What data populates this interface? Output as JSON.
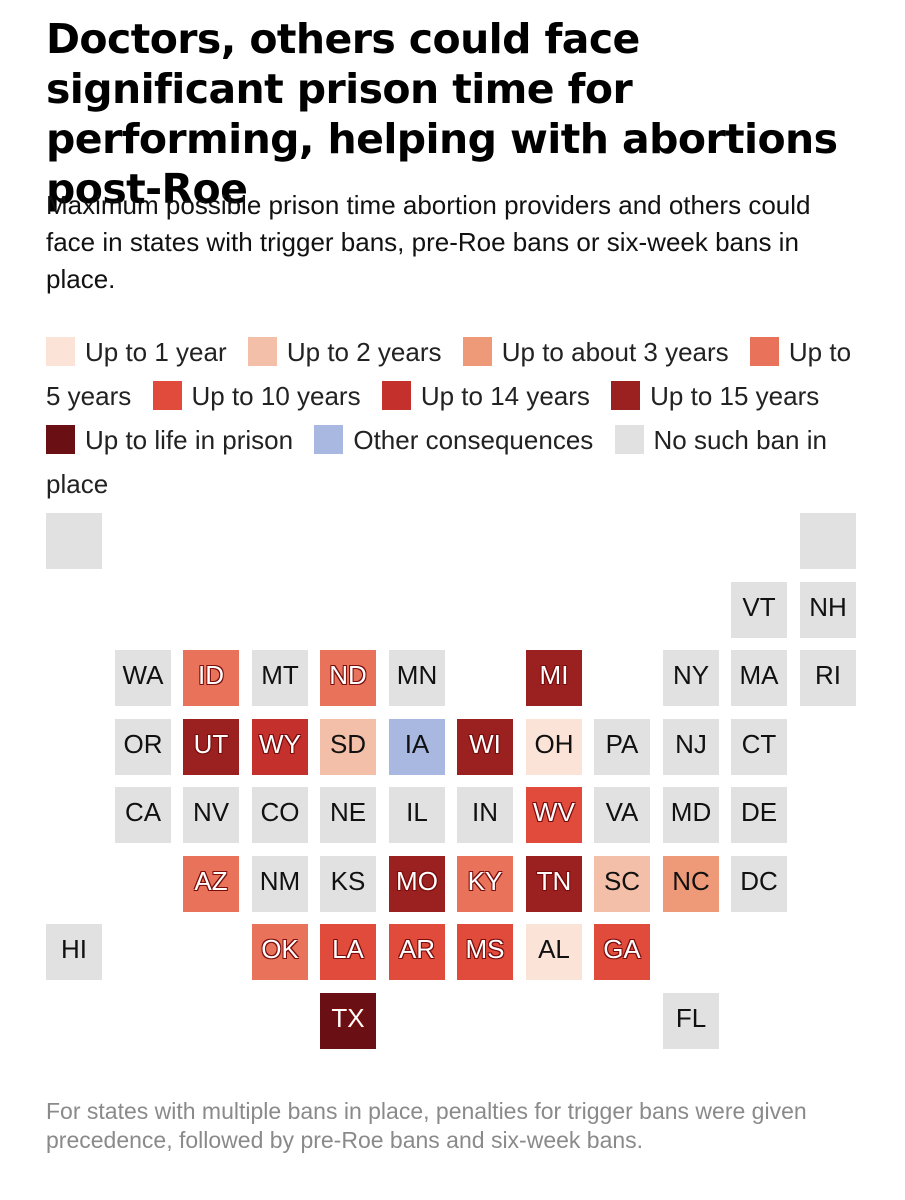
{
  "title": "Doctors, others could face significant prison time for performing, helping with abortions post-Roe",
  "subtitle": "Maximum possible prison time abortion providers and others could face in states with trigger bans, pre-Roe bans or six-week bans in place.",
  "legend": [
    {
      "key": "y1",
      "label": "Up to 1 year",
      "color": "#fbe3d8"
    },
    {
      "key": "y2",
      "label": "Up to 2 years",
      "color": "#f4bfa8"
    },
    {
      "key": "y3",
      "label": "Up to about 3 years",
      "color": "#ee9a79"
    },
    {
      "key": "y5",
      "label": "Up to 5 years",
      "color": "#e8735a"
    },
    {
      "key": "y10",
      "label": "Up to 10 years",
      "color": "#e04b3c"
    },
    {
      "key": "y14",
      "label": "Up to 14 years",
      "color": "#c4302b"
    },
    {
      "key": "y15",
      "label": "Up to 15 years",
      "color": "#9b2120"
    },
    {
      "key": "life",
      "label": "Up to life in prison",
      "color": "#6a1014"
    },
    {
      "key": "other",
      "label": "Other consequences",
      "color": "#a9b8e0"
    },
    {
      "key": "none",
      "label": "No such ban in place",
      "color": "#e1e1e1"
    }
  ],
  "states": [
    {
      "abbr": "",
      "cat": "none",
      "col": 0,
      "row": 0
    },
    {
      "abbr": "",
      "cat": "none",
      "col": 11,
      "row": 0
    },
    {
      "abbr": "VT",
      "cat": "none",
      "col": 10,
      "row": 1
    },
    {
      "abbr": "NH",
      "cat": "none",
      "col": 11,
      "row": 1
    },
    {
      "abbr": "WA",
      "cat": "none",
      "col": 1,
      "row": 2
    },
    {
      "abbr": "ID",
      "cat": "y5",
      "col": 2,
      "row": 2
    },
    {
      "abbr": "MT",
      "cat": "none",
      "col": 3,
      "row": 2
    },
    {
      "abbr": "ND",
      "cat": "y5",
      "col": 4,
      "row": 2
    },
    {
      "abbr": "MN",
      "cat": "none",
      "col": 5,
      "row": 2
    },
    {
      "abbr": "MI",
      "cat": "y15",
      "col": 7,
      "row": 2
    },
    {
      "abbr": "NY",
      "cat": "none",
      "col": 9,
      "row": 2
    },
    {
      "abbr": "MA",
      "cat": "none",
      "col": 10,
      "row": 2
    },
    {
      "abbr": "RI",
      "cat": "none",
      "col": 11,
      "row": 2
    },
    {
      "abbr": "OR",
      "cat": "none",
      "col": 1,
      "row": 3
    },
    {
      "abbr": "UT",
      "cat": "y15",
      "col": 2,
      "row": 3
    },
    {
      "abbr": "WY",
      "cat": "y14",
      "col": 3,
      "row": 3
    },
    {
      "abbr": "SD",
      "cat": "y2",
      "col": 4,
      "row": 3
    },
    {
      "abbr": "IA",
      "cat": "other",
      "col": 5,
      "row": 3
    },
    {
      "abbr": "WI",
      "cat": "y15",
      "col": 6,
      "row": 3
    },
    {
      "abbr": "OH",
      "cat": "y1",
      "col": 7,
      "row": 3
    },
    {
      "abbr": "PA",
      "cat": "none",
      "col": 8,
      "row": 3
    },
    {
      "abbr": "NJ",
      "cat": "none",
      "col": 9,
      "row": 3
    },
    {
      "abbr": "CT",
      "cat": "none",
      "col": 10,
      "row": 3
    },
    {
      "abbr": "CA",
      "cat": "none",
      "col": 1,
      "row": 4
    },
    {
      "abbr": "NV",
      "cat": "none",
      "col": 2,
      "row": 4
    },
    {
      "abbr": "CO",
      "cat": "none",
      "col": 3,
      "row": 4
    },
    {
      "abbr": "NE",
      "cat": "none",
      "col": 4,
      "row": 4
    },
    {
      "abbr": "IL",
      "cat": "none",
      "col": 5,
      "row": 4
    },
    {
      "abbr": "IN",
      "cat": "none",
      "col": 6,
      "row": 4
    },
    {
      "abbr": "WV",
      "cat": "y10",
      "col": 7,
      "row": 4
    },
    {
      "abbr": "VA",
      "cat": "none",
      "col": 8,
      "row": 4
    },
    {
      "abbr": "MD",
      "cat": "none",
      "col": 9,
      "row": 4
    },
    {
      "abbr": "DE",
      "cat": "none",
      "col": 10,
      "row": 4
    },
    {
      "abbr": "AZ",
      "cat": "y5",
      "col": 2,
      "row": 5
    },
    {
      "abbr": "NM",
      "cat": "none",
      "col": 3,
      "row": 5
    },
    {
      "abbr": "KS",
      "cat": "none",
      "col": 4,
      "row": 5
    },
    {
      "abbr": "MO",
      "cat": "y15",
      "col": 5,
      "row": 5
    },
    {
      "abbr": "KY",
      "cat": "y5",
      "col": 6,
      "row": 5
    },
    {
      "abbr": "TN",
      "cat": "y15",
      "col": 7,
      "row": 5
    },
    {
      "abbr": "SC",
      "cat": "y2",
      "col": 8,
      "row": 5
    },
    {
      "abbr": "NC",
      "cat": "y3",
      "col": 9,
      "row": 5
    },
    {
      "abbr": "DC",
      "cat": "none",
      "col": 10,
      "row": 5
    },
    {
      "abbr": "HI",
      "cat": "none",
      "col": 0,
      "row": 6
    },
    {
      "abbr": "OK",
      "cat": "y5",
      "col": 3,
      "row": 6
    },
    {
      "abbr": "LA",
      "cat": "y10",
      "col": 4,
      "row": 6
    },
    {
      "abbr": "AR",
      "cat": "y10",
      "col": 5,
      "row": 6
    },
    {
      "abbr": "MS",
      "cat": "y10",
      "col": 6,
      "row": 6
    },
    {
      "abbr": "AL",
      "cat": "y1",
      "col": 7,
      "row": 6
    },
    {
      "abbr": "GA",
      "cat": "y10",
      "col": 8,
      "row": 6
    },
    {
      "abbr": "TX",
      "cat": "life",
      "col": 4,
      "row": 7
    },
    {
      "abbr": "FL",
      "cat": "none",
      "col": 9,
      "row": 7
    }
  ],
  "footnote": "For states with multiple bans in place, penalties for trigger bans were given precedence, followed by pre-Roe bans and six-week bans."
}
